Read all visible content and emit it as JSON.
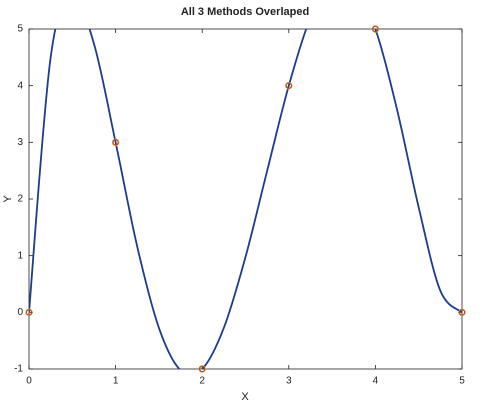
{
  "chart_data": {
    "type": "line",
    "title": "All 3 Methods Overlaped",
    "xlabel": "X",
    "ylabel": "Y",
    "xlim": [
      0,
      5
    ],
    "ylim": [
      -1,
      5
    ],
    "xticks": [
      0,
      1,
      2,
      3,
      4,
      5
    ],
    "yticks": [
      -1,
      0,
      1,
      2,
      3,
      4,
      5
    ],
    "series": [
      {
        "color": "#1c3c8c",
        "style": "line",
        "x": [
          0,
          0.25,
          0.5,
          0.75,
          1,
          1.25,
          1.5,
          1.75,
          2,
          2.25,
          2.5,
          2.75,
          3,
          3.25,
          3.5,
          3.75,
          4,
          4.25,
          4.5,
          4.75,
          5
        ],
        "values": [
          0,
          4.4995,
          5.6016,
          4.7397,
          3,
          1.1597,
          -0.2734,
          -1.022,
          -1,
          -0.2739,
          0.9766,
          2.4976,
          4,
          5.1987,
          5.8516,
          5.7983,
          5,
          3.5776,
          1.8516,
          0.3804,
          0
        ]
      },
      {
        "color": "#e8a030",
        "style": "marker",
        "x": [
          0,
          1,
          2,
          3,
          4,
          5
        ],
        "values": [
          0,
          3,
          -1,
          4,
          5,
          0
        ]
      },
      {
        "color": "#b0402a",
        "style": "marker",
        "x": [
          0,
          1,
          2,
          3,
          4,
          5
        ],
        "values": [
          0,
          3,
          -1,
          4,
          5,
          0
        ]
      }
    ]
  }
}
